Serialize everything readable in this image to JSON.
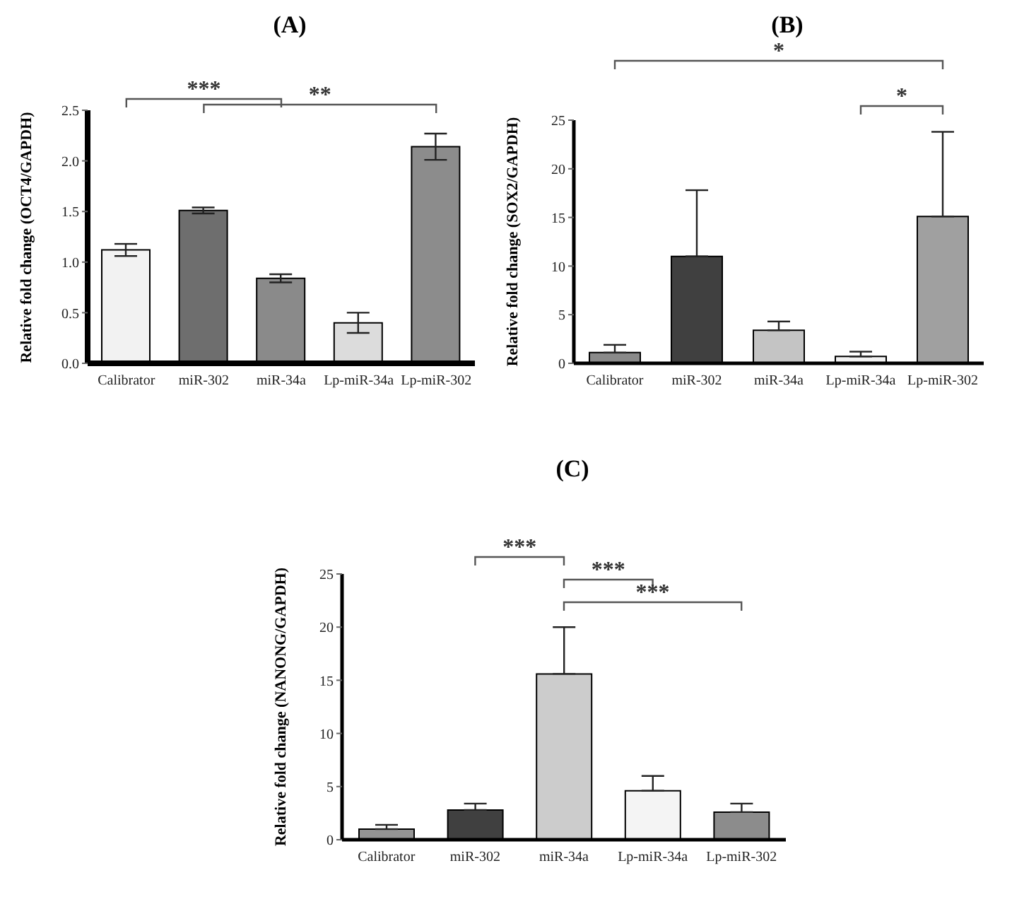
{
  "chart_data": [
    {
      "type": "bar",
      "title": "(A)",
      "ylabel": "Relative fold change (OCT4/GAPDH)",
      "categories": [
        "Calibrator",
        "miR-302",
        "miR-34a",
        "Lp-miR-34a",
        "Lp-miR-302"
      ],
      "values": [
        1.12,
        1.51,
        0.84,
        0.4,
        2.14
      ],
      "errors": [
        0.06,
        0.03,
        0.04,
        0.1,
        0.13
      ],
      "colors": [
        "#f2f2f2",
        "#6e6e6e",
        "#8a8a8a",
        "#dcdcdc",
        "#8c8c8c"
      ],
      "ylim": [
        0,
        2.5
      ],
      "yticks": [
        {
          "value": 0,
          "label": "0.0"
        },
        {
          "value": 0.5,
          "label": "0.5"
        },
        {
          "value": 1,
          "label": "1.0"
        },
        {
          "value": 1.5,
          "label": "1.5"
        },
        {
          "value": 2,
          "label": "2.0"
        },
        {
          "value": 2.5,
          "label": "2.5"
        }
      ],
      "annotations": [
        "***",
        "**"
      ]
    },
    {
      "type": "bar",
      "title": "(B)",
      "ylabel": "Relative fold change (SOX2/GAPDH)",
      "categories": [
        "Calibrator",
        "miR-302",
        "miR-34a",
        "Lp-miR-34a",
        "Lp-miR-302"
      ],
      "values": [
        1.1,
        11,
        3.4,
        0.7,
        15.1
      ],
      "errors": [
        [
          1.1,
          1.9
        ],
        [
          11,
          17.8
        ],
        [
          3.4,
          4.3
        ],
        [
          0.7,
          1.2
        ],
        [
          15.1,
          23.8
        ]
      ],
      "colors": [
        "#8a8a8a",
        "#404040",
        "#c4c4c4",
        "#f2f2f2",
        "#a0a0a0"
      ],
      "ylim": [
        0,
        25
      ],
      "yticks": [
        0,
        5,
        10,
        15,
        20,
        25
      ],
      "annotations": [
        "*",
        "*"
      ]
    },
    {
      "type": "bar",
      "title": "(C)",
      "ylabel": "Relative fold change (NANONG/GAPDH)",
      "categories": [
        "Calibrator",
        "miR-302",
        "miR-34a",
        "Lp-miR-34a",
        "Lp-miR-302"
      ],
      "values": [
        1,
        2.8,
        15.6,
        4.6,
        2.6
      ],
      "errors": [
        [
          1,
          1.4
        ],
        [
          2.8,
          3.4
        ],
        [
          15.6,
          20
        ],
        [
          4.6,
          6
        ],
        [
          2.6,
          3.4
        ]
      ],
      "colors": [
        "#949494",
        "#404040",
        "#cccccc",
        "#f4f4f4",
        "#8c8c8c"
      ],
      "ylim": [
        0,
        25
      ],
      "yticks": [
        0,
        5,
        10,
        15,
        20,
        25
      ],
      "annotations": [
        "***",
        "***",
        "***"
      ]
    }
  ]
}
